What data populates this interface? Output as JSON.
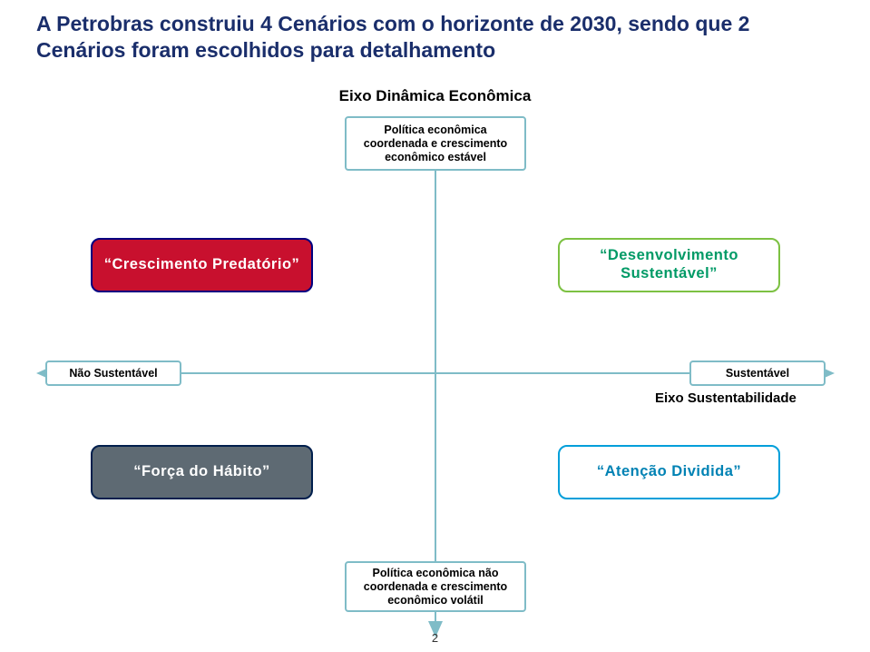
{
  "title": "A Petrobras construiu 4 Cenários com o horizonte de 2030, sendo que 2 Cenários foram escolhidos para detalhamento",
  "y_axis": {
    "label": "Eixo Dinâmica Econômica",
    "top_text": "Política econômica coordenada e crescimento econômico estável",
    "bottom_text": "Política econômica não coordenada e crescimento econômico volátil"
  },
  "x_axis": {
    "label": "Eixo Sustentabilidade",
    "left_text": "Não Sustentável",
    "right_text": "Sustentável"
  },
  "quadrants": {
    "tl": {
      "label": "“Crescimento Predatório”",
      "bg": "#c8102e",
      "border": "#000080",
      "text": "#ffffff"
    },
    "tr": {
      "label": "“Desenvolvimento Sustentável”",
      "bg": "#ffffff",
      "border": "#7cc142",
      "text": "#009a66"
    },
    "bl": {
      "label": "“Força do Hábito”",
      "bg": "#5e6a73",
      "border": "#001f4d",
      "text": "#ffffff"
    },
    "br": {
      "label": "“Atenção Dividida”",
      "bg": "#ffffff",
      "border": "#009fda",
      "text": "#0082b4"
    }
  },
  "page_number": "2",
  "colors": {
    "title": "#1a2e6b",
    "axis": "#7fbcc7",
    "background": "#ffffff"
  }
}
